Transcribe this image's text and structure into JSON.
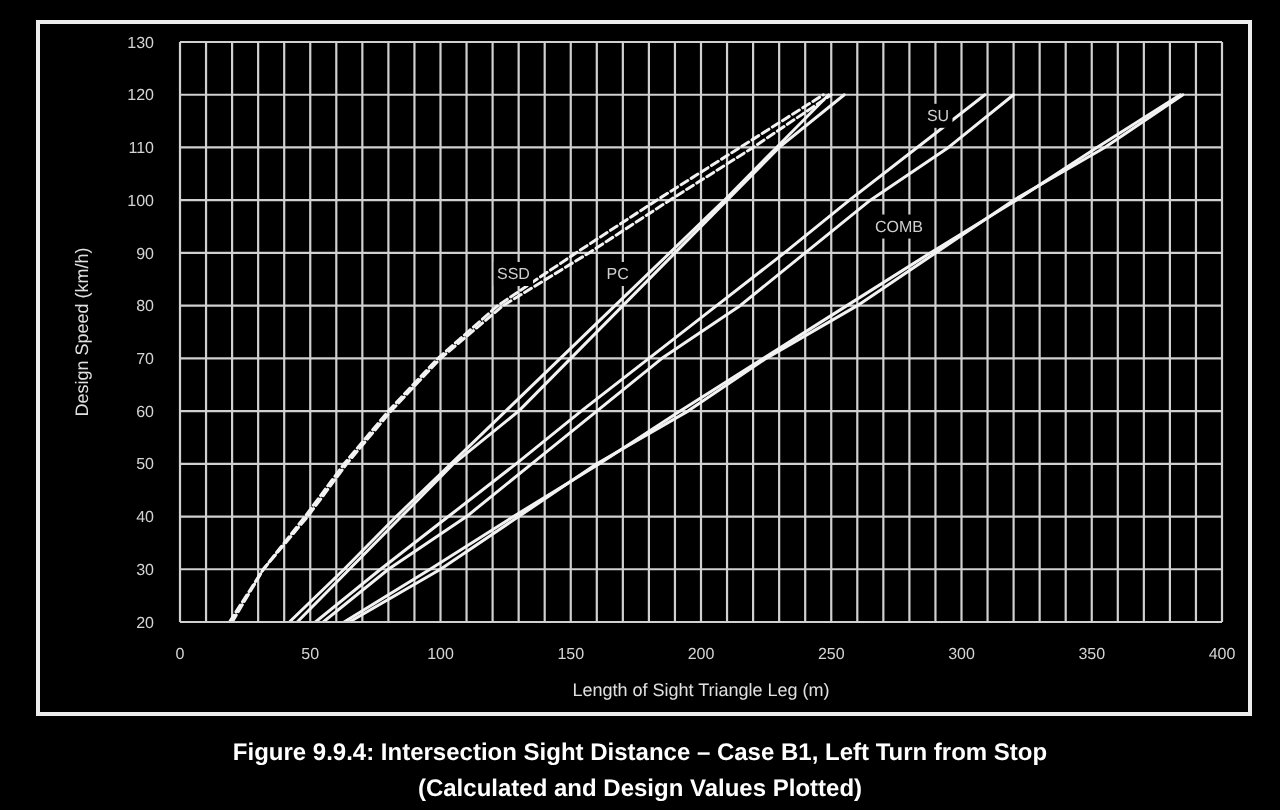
{
  "chart_data": {
    "type": "line",
    "title": "Figure 9.9.4: Intersection Sight Distance – Case B1, Left Turn from Stop",
    "subtitle": "(Calculated and Design Values Plotted)",
    "xlabel": "Length of Sight Triangle Leg (m)",
    "ylabel": "Design Speed (km/h)",
    "xlim": [
      0,
      400
    ],
    "xticks": [
      0,
      {
        "value": 10,
        "label": null
      },
      {
        "value": 20,
        "label": null
      },
      {
        "value": 30,
        "label": null
      },
      {
        "value": 40,
        "label": null
      },
      50,
      {
        "value": 60,
        "label": null
      },
      {
        "value": 70,
        "label": null
      },
      {
        "value": 80,
        "label": null
      },
      {
        "value": 90,
        "label": null
      },
      100,
      {
        "value": 110,
        "label": null
      },
      {
        "value": 120,
        "label": null
      },
      {
        "value": 130,
        "label": null
      },
      {
        "value": 140,
        "label": null
      },
      150,
      {
        "value": 160,
        "label": null
      },
      {
        "value": 170,
        "label": null
      },
      {
        "value": 180,
        "label": null
      },
      {
        "value": 190,
        "label": null
      },
      200,
      {
        "value": 210,
        "label": null
      },
      {
        "value": 220,
        "label": null
      },
      {
        "value": 230,
        "label": null
      },
      {
        "value": 240,
        "label": null
      },
      250,
      {
        "value": 260,
        "label": null
      },
      {
        "value": 270,
        "label": null
      },
      {
        "value": 280,
        "label": null
      },
      {
        "value": 290,
        "label": null
      },
      300,
      {
        "value": 310,
        "label": null
      },
      {
        "value": 320,
        "label": null
      },
      {
        "value": 330,
        "label": null
      },
      {
        "value": 340,
        "label": null
      },
      350,
      {
        "value": 360,
        "label": null
      },
      {
        "value": 370,
        "label": null
      },
      {
        "value": 380,
        "label": null
      },
      {
        "value": 390,
        "label": null
      },
      400
    ],
    "ylim": [
      20,
      130
    ],
    "yticks": [
      20,
      30,
      40,
      50,
      60,
      70,
      80,
      90,
      100,
      110,
      120,
      130
    ],
    "grid": true,
    "marker": "none",
    "line_style": "solid",
    "series": [
      {
        "color": "#f2f2f2",
        "line_style": "dashed",
        "x": [
          20,
          32,
          49,
          64,
          81,
          100,
          124,
          157,
          188,
          220,
          250
        ],
        "values": [
          20,
          30,
          40,
          50,
          60,
          70,
          80,
          90,
          100,
          110,
          120
        ]
      },
      {
        "color": "#f2f2f2",
        "line_style": "dashed",
        "x": [
          19,
          32,
          48,
          63,
          80,
          99,
          122,
          152,
          183,
          215,
          247
        ],
        "values": [
          20,
          30,
          40,
          50,
          60,
          70,
          80,
          90,
          100,
          110,
          120
        ]
      },
      {
        "color": "#f2f2f2",
        "x": [
          45,
          65,
          85,
          105,
          130,
          150,
          170,
          190,
          210,
          230,
          255
        ],
        "values": [
          20,
          30,
          40,
          50,
          60,
          70,
          80,
          90,
          100,
          110,
          120
        ]
      },
      {
        "color": "#f2f2f2",
        "x": [
          42,
          63,
          83,
          104,
          125,
          146,
          167,
          188,
          209,
          229,
          249
        ],
        "values": [
          20,
          30,
          40,
          50,
          60,
          70,
          80,
          90,
          100,
          110,
          120
        ]
      },
      {
        "color": "#f2f2f2",
        "x": [
          55,
          80,
          110,
          135,
          160,
          185,
          215,
          240,
          265,
          295,
          320
        ],
        "values": [
          20,
          30,
          40,
          50,
          60,
          70,
          80,
          90,
          100,
          110,
          120
        ]
      },
      {
        "color": "#f2f2f2",
        "x": [
          52,
          77,
          103,
          129,
          154,
          180,
          206,
          232,
          257,
          283,
          309
        ],
        "values": [
          20,
          30,
          40,
          50,
          60,
          70,
          80,
          90,
          100,
          110,
          120
        ]
      },
      {
        "color": "#f2f2f2",
        "x": [
          65,
          100,
          130,
          160,
          195,
          225,
          260,
          290,
          320,
          355,
          385
        ],
        "values": [
          20,
          30,
          40,
          50,
          60,
          70,
          80,
          90,
          100,
          110,
          120
        ]
      },
      {
        "color": "#f2f2f2",
        "x": [
          63,
          96,
          128,
          161,
          192,
          224,
          256,
          288,
          321,
          352,
          384
        ],
        "values": [
          20,
          30,
          40,
          50,
          60,
          70,
          80,
          90,
          100,
          110,
          120
        ]
      }
    ],
    "annotations": [
      "SSD",
      "PC",
      "SU",
      "COMB"
    ]
  }
}
